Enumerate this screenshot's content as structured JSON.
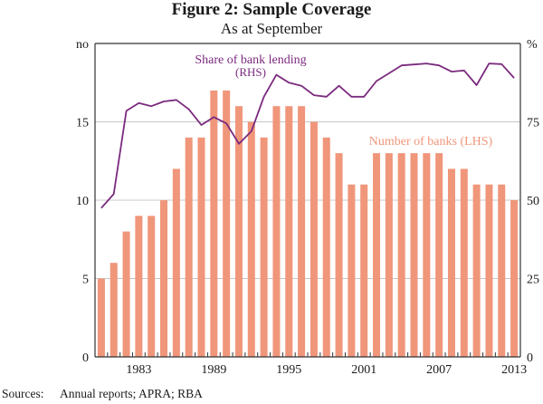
{
  "figure": {
    "title": "Figure 2: Sample Coverage",
    "subtitle": "As at September",
    "source_label": "Sources:",
    "source_text": "Annual reports; APRA; RBA"
  },
  "colors": {
    "bars": "#F0967A",
    "line": "#7B2A7E",
    "grid": "#C8C8C8",
    "axis": "#333333"
  },
  "chart_data": {
    "type": "bar+line",
    "title": "Figure 2: Sample Coverage",
    "subtitle": "As at September",
    "x": [
      1980,
      1981,
      1982,
      1983,
      1984,
      1985,
      1986,
      1987,
      1988,
      1989,
      1990,
      1991,
      1992,
      1993,
      1994,
      1995,
      1996,
      1997,
      1998,
      1999,
      2000,
      2001,
      2002,
      2003,
      2004,
      2005,
      2006,
      2007,
      2008,
      2009,
      2010,
      2011,
      2012,
      2013
    ],
    "xtick_labels": [
      "1983",
      "1989",
      "1995",
      "2001",
      "2007",
      "2013"
    ],
    "left_axis": {
      "unit_label": "no",
      "ylim": [
        0,
        20
      ],
      "ticks": [
        0,
        5,
        10,
        15
      ]
    },
    "right_axis": {
      "unit_label": "%",
      "ylim": [
        0,
        100
      ],
      "ticks": [
        0,
        25,
        50,
        75
      ]
    },
    "grid": true,
    "series": [
      {
        "name": "Number of banks (LHS)",
        "type": "bar",
        "axis": "left",
        "values": [
          5,
          6,
          8,
          9,
          9,
          10,
          12,
          14,
          14,
          17,
          17,
          16,
          15,
          14,
          16,
          16,
          16,
          15,
          14,
          13,
          11,
          11,
          13,
          13,
          13,
          13,
          13,
          13,
          12,
          12,
          11,
          11,
          11,
          10
        ]
      },
      {
        "name": "Share of bank lending (RHS)",
        "type": "line",
        "axis": "right",
        "values": [
          47.5,
          52,
          78.5,
          81,
          80,
          81.5,
          82,
          79,
          74,
          76.5,
          74.5,
          68,
          72,
          83,
          90,
          87.5,
          86.5,
          83.5,
          83,
          86.5,
          83,
          83,
          88,
          90.5,
          93,
          93.3,
          93.6,
          93,
          91,
          91.4,
          86.7,
          93.6,
          93.4,
          89
        ]
      }
    ],
    "annotations": [
      {
        "text": "Share of bank lending",
        "series": "Share of bank lending (RHS)"
      },
      {
        "text": "(RHS)",
        "series": "Share of bank lending (RHS)"
      },
      {
        "text": "Number of banks (LHS)",
        "series": "Number of banks (LHS)"
      }
    ]
  }
}
